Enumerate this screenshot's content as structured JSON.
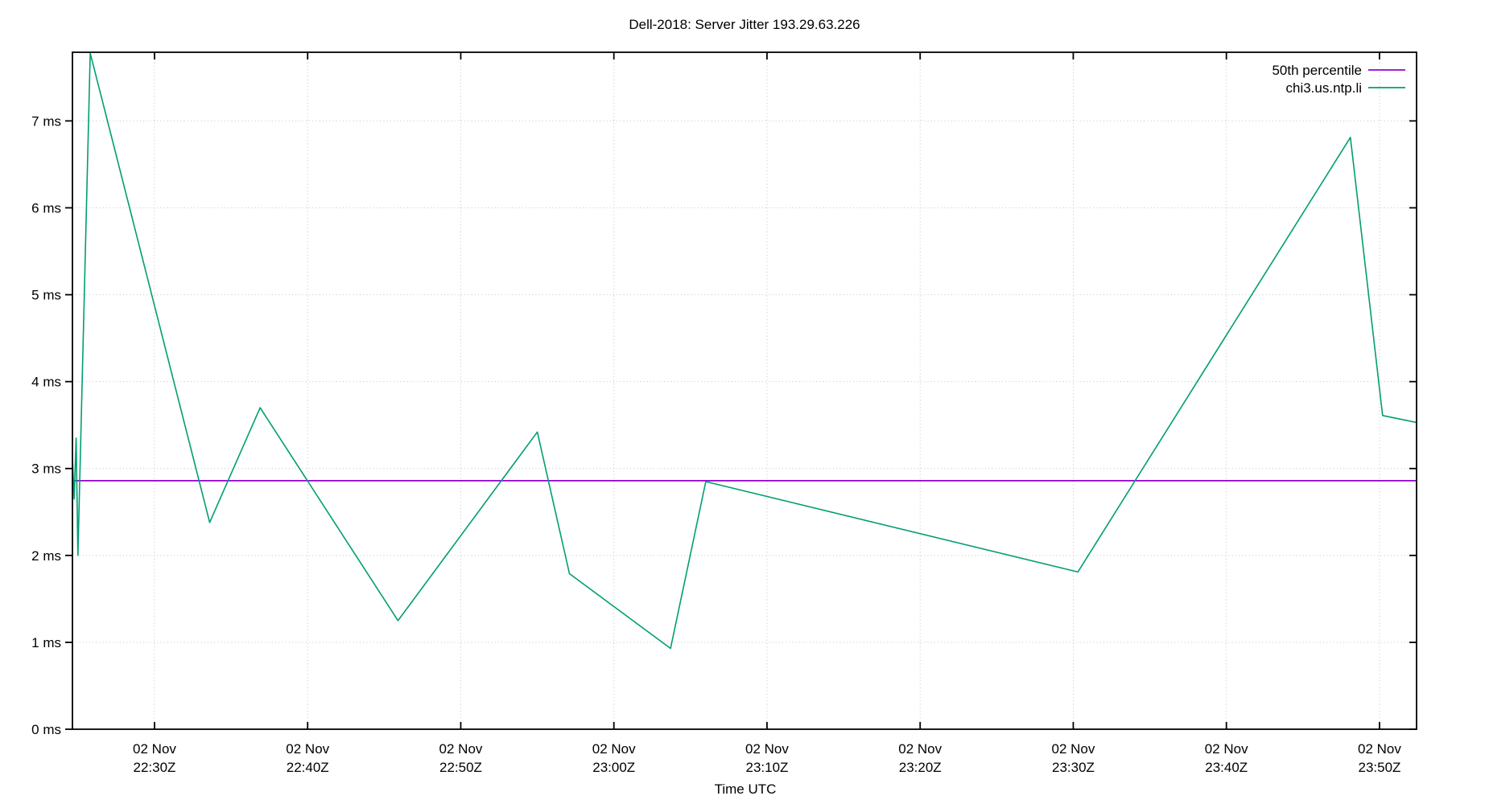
{
  "title": "Dell-2018: Server Jitter 193.29.63.226",
  "colors": {
    "background": "#ffffff",
    "border": "#000000",
    "grid": "#c4c4c4",
    "text": "#000000",
    "percentile_line": "#9400d3",
    "series_line": "#009e73"
  },
  "chart_data": {
    "type": "line",
    "title": "Dell-2018: Server Jitter 193.29.63.226",
    "xlabel": "Time UTC",
    "ylabel": "",
    "x_unit": "minutes after 2018-11-02 22:00 UTC",
    "xlim": [
      24.64,
      112.42
    ],
    "ylim": [
      0,
      7.79
    ],
    "grid": "dotted",
    "legend_position": "top-right-inside",
    "x_ticks": [
      {
        "minute": 30,
        "date": "02 Nov",
        "time": "22:30Z"
      },
      {
        "minute": 40,
        "date": "02 Nov",
        "time": "22:40Z"
      },
      {
        "minute": 50,
        "date": "02 Nov",
        "time": "22:50Z"
      },
      {
        "minute": 60,
        "date": "02 Nov",
        "time": "23:00Z"
      },
      {
        "minute": 70,
        "date": "02 Nov",
        "time": "23:10Z"
      },
      {
        "minute": 80,
        "date": "02 Nov",
        "time": "23:20Z"
      },
      {
        "minute": 90,
        "date": "02 Nov",
        "time": "23:30Z"
      },
      {
        "minute": 100,
        "date": "02 Nov",
        "time": "23:40Z"
      },
      {
        "minute": 110,
        "date": "02 Nov",
        "time": "23:50Z"
      }
    ],
    "y_ticks": [
      {
        "value": 0,
        "label": "0 ms"
      },
      {
        "value": 1,
        "label": "1 ms"
      },
      {
        "value": 2,
        "label": "2 ms"
      },
      {
        "value": 3,
        "label": "3 ms"
      },
      {
        "value": 4,
        "label": "4 ms"
      },
      {
        "value": 5,
        "label": "5 ms"
      },
      {
        "value": 6,
        "label": "6 ms"
      },
      {
        "value": 7,
        "label": "7 ms"
      }
    ],
    "series": [
      {
        "name": "50th percentile",
        "color": "#9400d3",
        "style": "hline",
        "value": 2.86
      },
      {
        "name": "chi3.us.ntp.li",
        "color": "#009e73",
        "style": "line",
        "points": [
          [
            24.6,
            3.3
          ],
          [
            24.75,
            2.65
          ],
          [
            24.88,
            3.35
          ],
          [
            25.0,
            2.0
          ],
          [
            25.8,
            7.78
          ],
          [
            33.6,
            2.38
          ],
          [
            36.9,
            3.7
          ],
          [
            45.9,
            1.25
          ],
          [
            55.0,
            3.42
          ],
          [
            57.1,
            1.79
          ],
          [
            63.7,
            0.93
          ],
          [
            66.0,
            2.85
          ],
          [
            90.3,
            1.81
          ],
          [
            108.1,
            6.81
          ],
          [
            110.2,
            3.61
          ],
          [
            112.42,
            3.53
          ]
        ]
      }
    ]
  }
}
